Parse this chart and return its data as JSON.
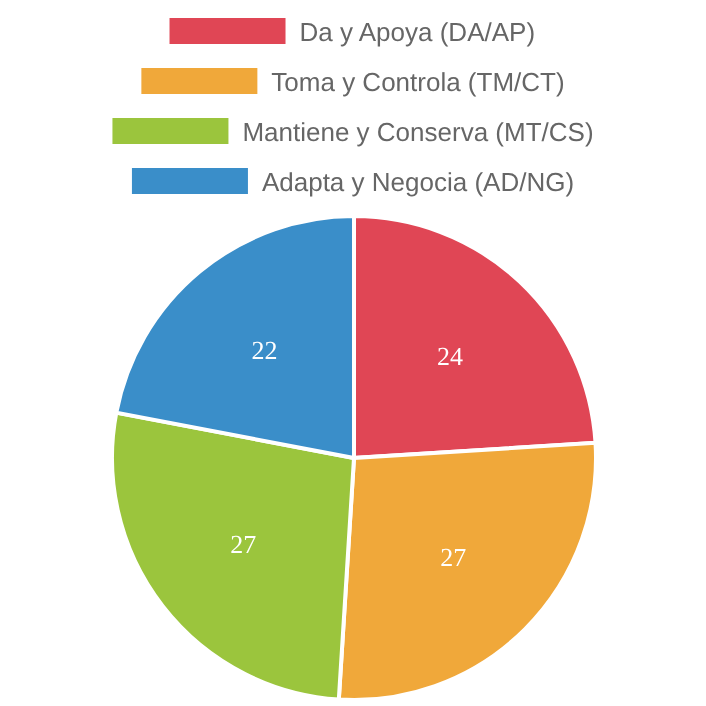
{
  "chart_data": {
    "type": "pie",
    "categories": [
      "Da y Apoya (DA/AP)",
      "Toma y Controla (TM/CT)",
      "Mantiene y Conserva (MT/CS)",
      "Adapta y Negocia (AD/NG)"
    ],
    "values": [
      24,
      27,
      27,
      22
    ],
    "colors": [
      "#e04655",
      "#f0a83a",
      "#9bc53d",
      "#3a8ec9"
    ],
    "data_labels": true,
    "legend": "top"
  }
}
